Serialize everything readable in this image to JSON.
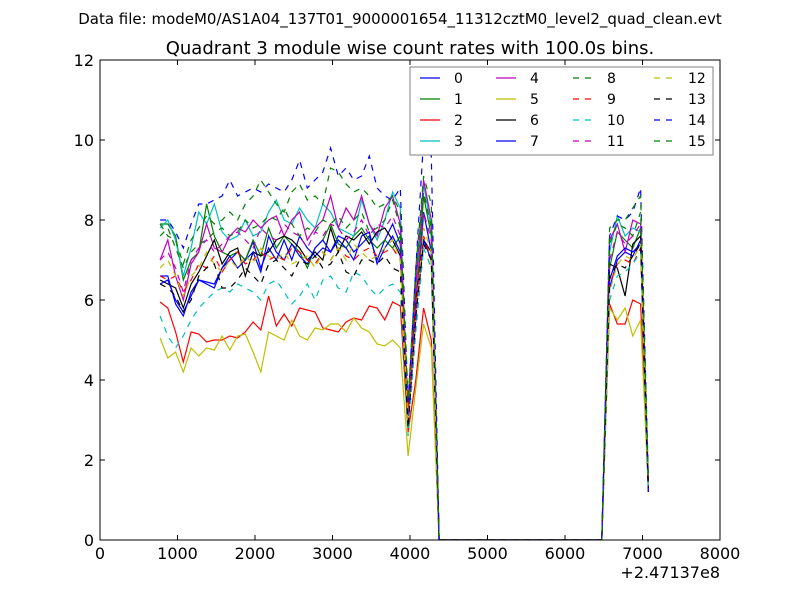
{
  "chart_data": {
    "type": "line",
    "suptitle": "Data file: modeM0/AS1A04_137T01_9000001654_11312cztM0_level2_quad_clean.evt",
    "title": "Quadrant 3 module wise count rates with 100.0s bins.",
    "xlabel": "",
    "ylabel": "",
    "x_offset_label": "+2.47137e8",
    "xlim": [
      0,
      8000
    ],
    "ylim": [
      0,
      12
    ],
    "xticks": [
      "0",
      "1000",
      "2000",
      "3000",
      "4000",
      "5000",
      "6000",
      "7000",
      "8000"
    ],
    "yticks": [
      "0",
      "2",
      "4",
      "6",
      "8",
      "10",
      "12"
    ],
    "grid": false,
    "legend_placement": "top-right",
    "legend_columns": 4,
    "x": [
      775,
      875,
      975,
      1075,
      1175,
      1275,
      1375,
      1475,
      1575,
      1675,
      1775,
      1875,
      1975,
      2075,
      2175,
      2275,
      2375,
      2475,
      2575,
      2675,
      2775,
      2875,
      2975,
      3075,
      3175,
      3275,
      3375,
      3475,
      3575,
      3675,
      3775,
      3875,
      3975,
      4075,
      4175,
      4275,
      4375,
      4475,
      4575,
      4675,
      4775,
      4875,
      4975,
      5075,
      5175,
      5275,
      5375,
      5475,
      5575,
      5675,
      5775,
      5875,
      5975,
      6075,
      6175,
      6275,
      6375,
      6475,
      6575,
      6675,
      6775,
      6875,
      6975,
      7075
    ],
    "series": [
      {
        "name": "0",
        "color": "#0000ff",
        "dashed": false,
        "values": [
          6.6,
          6.6,
          5.9,
          5.6,
          6.2,
          6.5,
          6.45,
          6.4,
          6.8,
          7.0,
          7.2,
          7.0,
          7.45,
          6.8,
          7.3,
          7.0,
          7.5,
          7.0,
          7.6,
          7.3,
          7.1,
          7.3,
          7.2,
          7.6,
          7.5,
          7.2,
          7.4,
          7.6,
          7.0,
          7.5,
          7.9,
          7.4,
          3.0,
          5.5,
          8.2,
          7.2,
          0,
          0,
          0,
          0,
          0,
          0,
          0,
          0,
          0,
          0,
          0,
          0,
          0,
          0,
          0,
          0,
          0,
          0,
          0,
          0,
          0,
          0,
          6.3,
          7.0,
          7.2,
          7.1,
          7.5,
          1.2
        ]
      },
      {
        "name": "1",
        "color": "#008000",
        "dashed": false,
        "values": [
          7.9,
          7.9,
          7.6,
          6.5,
          7.0,
          7.2,
          8.4,
          7.6,
          7.2,
          7.1,
          7.2,
          7.0,
          7.5,
          7.1,
          7.8,
          7.3,
          7.6,
          7.4,
          7.2,
          6.8,
          7.3,
          7.5,
          7.9,
          7.4,
          7.3,
          7.6,
          7.8,
          7.5,
          7.3,
          7.5,
          7.3,
          7.6,
          3.2,
          5.8,
          8.6,
          7.6,
          0,
          0,
          0,
          0,
          0,
          0,
          0,
          0,
          0,
          0,
          0,
          0,
          0,
          0,
          0,
          0,
          0,
          0,
          0,
          0,
          0,
          0,
          6.8,
          7.7,
          7.5,
          7.3,
          7.8,
          1.4
        ]
      },
      {
        "name": "2",
        "color": "#ff0000",
        "dashed": false,
        "values": [
          5.95,
          5.8,
          5.2,
          4.45,
          5.2,
          5.15,
          4.95,
          5.0,
          5.0,
          5.1,
          5.05,
          5.2,
          5.45,
          5.25,
          6.1,
          5.35,
          5.65,
          5.35,
          5.8,
          5.75,
          5.7,
          5.3,
          5.25,
          5.2,
          5.45,
          5.55,
          5.5,
          5.85,
          5.8,
          5.5,
          5.95,
          5.85,
          2.7,
          4.0,
          5.8,
          5.0,
          0,
          0,
          0,
          0,
          0,
          0,
          0,
          0,
          0,
          0,
          0,
          0,
          0,
          0,
          0,
          0,
          0,
          0,
          0,
          0,
          0,
          0,
          5.9,
          5.4,
          5.4,
          6.0,
          5.9,
          1.5
        ]
      },
      {
        "name": "3",
        "color": "#00bfbf",
        "dashed": false,
        "values": [
          7.8,
          8.0,
          7.5,
          6.6,
          7.3,
          8.2,
          7.9,
          8.4,
          7.7,
          7.5,
          7.6,
          8.0,
          7.6,
          7.7,
          8.2,
          8.5,
          8.0,
          7.9,
          8.3,
          8.0,
          7.8,
          8.4,
          8.2,
          7.8,
          7.7,
          7.6,
          8.5,
          7.9,
          7.5,
          8.0,
          8.7,
          8.3,
          2.8,
          6.5,
          8.9,
          7.8,
          0,
          0,
          0,
          0,
          0,
          0,
          0,
          0,
          0,
          0,
          0,
          0,
          0,
          0,
          0,
          0,
          0,
          0,
          0,
          0,
          0,
          0,
          7.2,
          8.1,
          7.6,
          7.8,
          7.7,
          1.3
        ]
      },
      {
        "name": "4",
        "color": "#bf00bf",
        "dashed": false,
        "values": [
          7.0,
          7.5,
          6.6,
          6.0,
          6.9,
          7.2,
          7.9,
          7.3,
          7.2,
          7.6,
          7.8,
          7.7,
          8.0,
          7.8,
          8.0,
          8.1,
          7.6,
          8.0,
          8.2,
          7.5,
          7.8,
          8.0,
          8.6,
          7.8,
          8.3,
          8.0,
          8.6,
          7.9,
          7.6,
          8.3,
          8.6,
          7.9,
          3.0,
          6.3,
          9.0,
          8.0,
          0,
          0,
          0,
          0,
          0,
          0,
          0,
          0,
          0,
          0,
          0,
          0,
          0,
          0,
          0,
          0,
          0,
          0,
          0,
          0,
          0,
          0,
          7.5,
          7.9,
          7.2,
          8.0,
          7.9,
          1.5
        ]
      },
      {
        "name": "5",
        "color": "#bfbf00",
        "dashed": false,
        "values": [
          5.05,
          4.55,
          4.7,
          4.2,
          4.8,
          4.6,
          4.8,
          4.75,
          5.1,
          4.75,
          5.1,
          5.15,
          4.7,
          4.2,
          5.2,
          5.1,
          5.0,
          5.5,
          5.1,
          5.0,
          5.3,
          5.25,
          5.4,
          5.4,
          5.2,
          5.55,
          5.3,
          5.2,
          4.9,
          4.85,
          5.0,
          4.8,
          2.1,
          3.8,
          5.4,
          4.8,
          0,
          0,
          0,
          0,
          0,
          0,
          0,
          0,
          0,
          0,
          0,
          0,
          0,
          0,
          0,
          0,
          0,
          0,
          0,
          0,
          0,
          0,
          5.8,
          5.5,
          5.8,
          5.1,
          5.5,
          1.3
        ]
      },
      {
        "name": "6",
        "color": "#000000",
        "dashed": false,
        "values": [
          6.5,
          6.4,
          6.3,
          5.8,
          6.4,
          6.7,
          7.1,
          7.5,
          6.9,
          7.2,
          7.3,
          6.6,
          7.2,
          7.1,
          7.2,
          7.5,
          7.6,
          7.5,
          7.3,
          7.0,
          7.2,
          7.0,
          7.8,
          7.2,
          7.6,
          7.5,
          7.7,
          7.4,
          7.7,
          7.8,
          7.5,
          7.1,
          2.9,
          6.0,
          7.5,
          7.2,
          0,
          0,
          0,
          0,
          0,
          0,
          0,
          0,
          0,
          0,
          0,
          0,
          0,
          0,
          0,
          0,
          0,
          0,
          0,
          0,
          0,
          0,
          6.9,
          6.8,
          6.1,
          7.4,
          7.6,
          1.3
        ]
      },
      {
        "name": "7",
        "color": "#0000ff",
        "dashed": false,
        "values": [
          6.4,
          6.5,
          6.0,
          5.7,
          6.1,
          6.5,
          6.4,
          6.3,
          6.8,
          7.1,
          6.8,
          7.0,
          7.2,
          6.7,
          7.6,
          7.2,
          7.0,
          7.4,
          7.1,
          6.9,
          7.3,
          7.5,
          7.2,
          7.5,
          7.3,
          7.0,
          7.6,
          7.7,
          6.9,
          7.3,
          7.6,
          7.2,
          2.9,
          5.7,
          7.5,
          7.0,
          0,
          0,
          0,
          0,
          0,
          0,
          0,
          0,
          0,
          0,
          0,
          0,
          0,
          0,
          0,
          0,
          0,
          0,
          0,
          0,
          0,
          0,
          6.5,
          7.1,
          7.3,
          7.2,
          7.4,
          1.2
        ]
      },
      {
        "name": "8",
        "color": "#008000",
        "dashed": true,
        "values": [
          7.6,
          7.8,
          7.3,
          6.8,
          7.2,
          7.4,
          7.5,
          7.7,
          7.8,
          7.6,
          7.7,
          8.0,
          7.8,
          7.9,
          8.1,
          8.0,
          8.3,
          7.9,
          7.6,
          7.8,
          7.7,
          8.0,
          7.9,
          8.1,
          7.8,
          8.0,
          8.2,
          7.7,
          7.8,
          8.0,
          8.5,
          7.8,
          3.3,
          6.6,
          8.7,
          7.8,
          0,
          0,
          0,
          0,
          0,
          0,
          0,
          0,
          0,
          0,
          0,
          0,
          0,
          0,
          0,
          0,
          0,
          0,
          0,
          0,
          0,
          0,
          7.4,
          7.9,
          7.8,
          7.6,
          8.2,
          1.6
        ]
      },
      {
        "name": "9",
        "color": "#ff0000",
        "dashed": true,
        "values": [
          6.6,
          6.5,
          6.6,
          6.2,
          6.5,
          6.9,
          6.8,
          7.1,
          6.7,
          7.0,
          7.2,
          6.9,
          7.0,
          7.2,
          7.0,
          7.1,
          7.0,
          7.3,
          7.2,
          7.0,
          6.9,
          7.2,
          7.0,
          7.3,
          7.1,
          7.0,
          7.2,
          7.3,
          7.1,
          7.2,
          7.3,
          7.0,
          3.1,
          5.8,
          7.6,
          7.0,
          0,
          0,
          0,
          0,
          0,
          0,
          0,
          0,
          0,
          0,
          0,
          0,
          0,
          0,
          0,
          0,
          0,
          0,
          0,
          0,
          0,
          0,
          6.4,
          6.9,
          7.0,
          6.9,
          7.3,
          1.4
        ]
      },
      {
        "name": "10",
        "color": "#00bfbf",
        "dashed": true,
        "values": [
          5.6,
          5.1,
          4.8,
          5.1,
          5.5,
          5.8,
          6.0,
          6.2,
          6.3,
          6.2,
          6.4,
          6.3,
          6.2,
          6.0,
          6.4,
          6.5,
          6.2,
          5.9,
          6.1,
          6.4,
          6.0,
          6.5,
          6.6,
          6.3,
          6.2,
          6.7,
          6.6,
          6.3,
          6.1,
          6.3,
          6.4,
          6.2,
          2.6,
          5.2,
          7.3,
          6.8,
          0,
          0,
          0,
          0,
          0,
          0,
          0,
          0,
          0,
          0,
          0,
          0,
          0,
          0,
          0,
          0,
          0,
          0,
          0,
          0,
          0,
          0,
          6.0,
          6.6,
          6.7,
          6.9,
          7.2,
          1.3
        ]
      },
      {
        "name": "11",
        "color": "#bf00bf",
        "dashed": true,
        "values": [
          7.0,
          7.2,
          6.8,
          6.2,
          7.0,
          7.3,
          7.5,
          7.2,
          7.4,
          7.6,
          7.7,
          7.5,
          7.3,
          7.8,
          7.6,
          7.5,
          7.9,
          7.7,
          7.6,
          7.3,
          7.7,
          7.6,
          7.9,
          7.8,
          7.5,
          7.7,
          8.0,
          7.6,
          7.9,
          7.8,
          8.1,
          7.6,
          3.1,
          6.0,
          8.2,
          7.5,
          0,
          0,
          0,
          0,
          0,
          0,
          0,
          0,
          0,
          0,
          0,
          0,
          0,
          0,
          0,
          0,
          0,
          0,
          0,
          0,
          0,
          0,
          7.0,
          7.7,
          7.4,
          7.6,
          7.9,
          1.5
        ]
      },
      {
        "name": "12",
        "color": "#bfbf00",
        "dashed": true,
        "values": [
          6.8,
          7.0,
          6.6,
          6.1,
          6.6,
          6.8,
          7.2,
          6.9,
          6.7,
          7.0,
          6.8,
          7.1,
          6.9,
          7.3,
          7.1,
          7.0,
          7.2,
          6.9,
          7.0,
          7.1,
          6.8,
          7.2,
          7.0,
          7.3,
          7.0,
          7.4,
          7.2,
          7.0,
          7.1,
          7.3,
          7.5,
          7.0,
          2.9,
          5.6,
          7.8,
          7.2,
          0,
          0,
          0,
          0,
          0,
          0,
          0,
          0,
          0,
          0,
          0,
          0,
          0,
          0,
          0,
          0,
          0,
          0,
          0,
          0,
          0,
          0,
          6.2,
          6.9,
          7.1,
          7.0,
          7.4,
          1.4
        ]
      },
      {
        "name": "13",
        "color": "#000000",
        "dashed": true,
        "values": [
          6.4,
          6.3,
          6.1,
          5.7,
          6.0,
          6.6,
          6.8,
          6.9,
          6.3,
          6.3,
          6.5,
          6.8,
          6.6,
          6.4,
          6.9,
          7.0,
          6.8,
          6.6,
          7.0,
          6.9,
          7.1,
          6.8,
          6.9,
          7.2,
          6.7,
          6.6,
          7.0,
          7.0,
          6.9,
          7.1,
          6.8,
          6.7,
          2.8,
          5.6,
          7.4,
          7.0,
          0,
          0,
          0,
          0,
          0,
          0,
          0,
          0,
          0,
          0,
          0,
          0,
          0,
          0,
          0,
          0,
          0,
          0,
          0,
          0,
          0,
          0,
          6.6,
          6.9,
          6.8,
          7.1,
          7.4,
          1.3
        ]
      },
      {
        "name": "14",
        "color": "#0000ff",
        "dashed": true,
        "values": [
          8.0,
          8.0,
          7.7,
          7.3,
          7.9,
          8.4,
          8.4,
          8.5,
          8.6,
          9.0,
          8.6,
          8.7,
          8.8,
          8.7,
          8.9,
          8.8,
          8.7,
          9.0,
          9.5,
          8.8,
          9.0,
          9.2,
          9.8,
          9.1,
          9.3,
          9.0,
          9.1,
          9.6,
          8.8,
          8.6,
          8.5,
          8.8,
          3.4,
          6.8,
          10.0,
          9.6,
          0,
          0,
          0,
          0,
          0,
          0,
          0,
          0,
          0,
          0,
          0,
          0,
          0,
          0,
          0,
          0,
          0,
          0,
          0,
          0,
          0,
          0,
          7.6,
          8.1,
          8.0,
          8.2,
          8.8,
          1.6
        ]
      },
      {
        "name": "15",
        "color": "#008000",
        "dashed": true,
        "values": [
          7.9,
          7.6,
          7.5,
          6.9,
          7.5,
          7.8,
          8.1,
          7.9,
          8.0,
          8.2,
          8.0,
          8.4,
          8.6,
          9.0,
          8.7,
          8.4,
          8.2,
          8.7,
          8.9,
          8.5,
          8.6,
          8.4,
          9.3,
          9.2,
          8.9,
          8.7,
          8.8,
          8.6,
          8.3,
          8.4,
          8.6,
          8.2,
          3.5,
          6.8,
          9.1,
          8.4,
          0,
          0,
          0,
          0,
          0,
          0,
          0,
          0,
          0,
          0,
          0,
          0,
          0,
          0,
          0,
          0,
          0,
          0,
          0,
          0,
          0,
          0,
          7.8,
          8.0,
          8.0,
          8.3,
          8.6,
          1.5
        ]
      }
    ]
  }
}
